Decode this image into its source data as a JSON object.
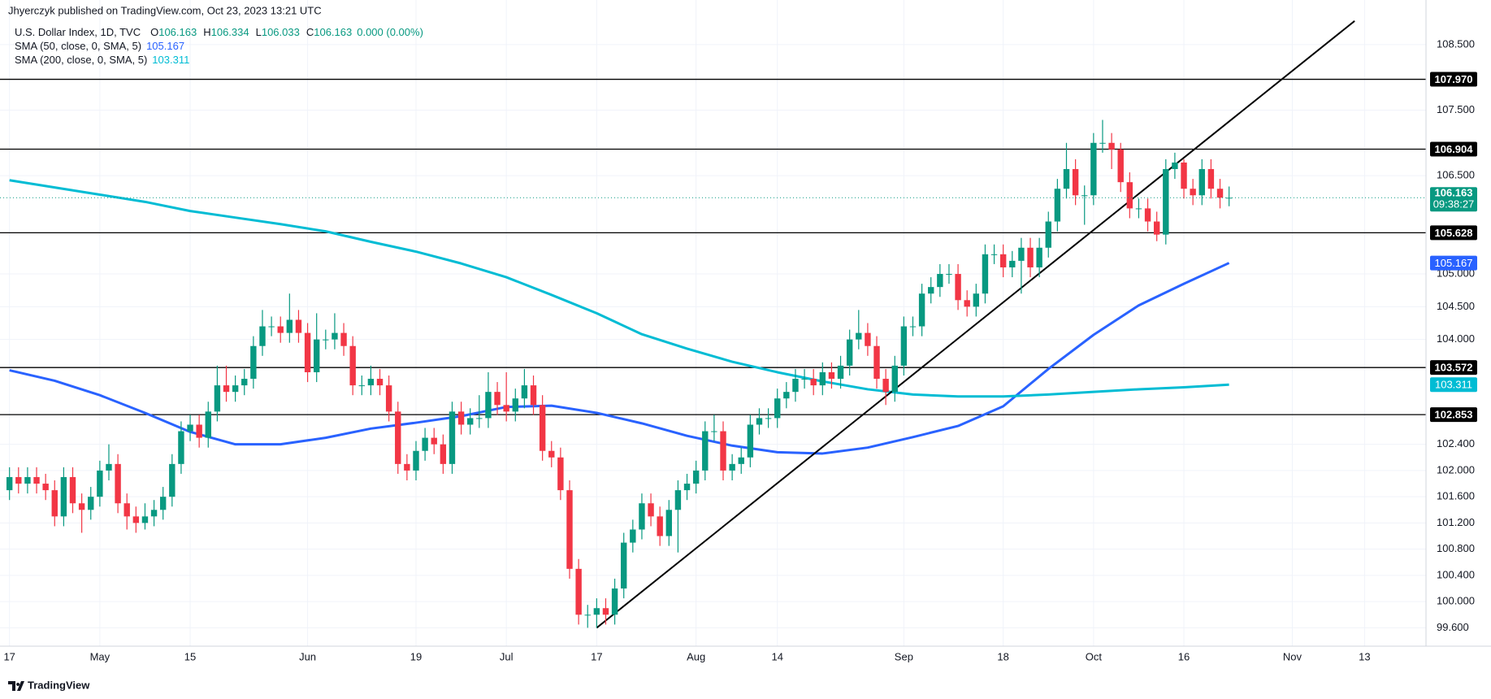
{
  "chart_data": {
    "type": "candlestick",
    "publisher": "Jhyerczyk published on TradingView.com, Oct 23, 2023 13:21 UTC",
    "title": "U.S. Dollar Index, 1D, TVC",
    "ohlc_prefix": [
      "O",
      "H",
      "L",
      "C"
    ],
    "change_label": "0.000 (0.00%)",
    "countdown": "09:38:27",
    "footer": "TradingView",
    "up_color": "#089981",
    "down_color": "#f23645",
    "open": [
      101.7,
      101.9,
      101.8,
      101.9,
      101.8,
      101.7,
      101.3,
      101.9,
      101.5,
      101.4,
      101.6,
      102.0,
      102.1,
      101.5,
      101.3,
      101.2,
      101.3,
      101.4,
      101.6,
      102.1,
      102.6,
      102.7,
      102.5,
      102.9,
      103.3,
      103.2,
      103.3,
      103.4,
      103.9,
      104.2,
      104.2,
      104.1,
      104.3,
      104.1,
      103.5,
      104.0,
      104.0,
      104.1,
      103.9,
      103.3,
      103.3,
      103.4,
      103.3,
      102.9,
      102.1,
      102.0,
      102.3,
      102.5,
      102.4,
      102.1,
      102.9,
      102.7,
      102.8,
      102.8,
      103.2,
      103.0,
      102.9,
      103.1,
      103.3,
      103.0,
      102.3,
      102.2,
      101.7,
      100.5,
      99.8,
      99.8,
      99.9,
      99.8,
      100.2,
      100.9,
      101.1,
      101.5,
      101.3,
      101.0,
      101.4,
      101.7,
      101.8,
      102.0,
      102.6,
      102.6,
      102.0,
      102.1,
      102.2,
      102.7,
      102.8,
      102.8,
      103.1,
      103.2,
      103.4,
      103.4,
      103.3,
      103.5,
      103.4,
      103.6,
      104.0,
      104.1,
      103.9,
      103.4,
      103.2,
      103.6,
      104.2,
      104.2,
      104.7,
      104.8,
      105.0,
      105.0,
      104.6,
      104.5,
      104.7,
      105.3,
      105.3,
      105.1,
      105.2,
      105.4,
      105.1,
      105.4,
      105.8,
      106.3,
      106.6,
      106.2,
      106.2,
      107.0,
      107.0,
      106.9,
      106.4,
      106.0,
      106.0,
      105.8,
      105.6,
      106.6,
      106.7,
      106.3,
      106.2,
      106.6,
      106.3,
      106.163
    ],
    "high": [
      102.05,
      102.05,
      102.05,
      102.05,
      101.95,
      101.85,
      102.05,
      102.05,
      101.65,
      101.75,
      102.15,
      102.4,
      102.25,
      101.65,
      101.45,
      101.5,
      101.55,
      101.75,
      102.25,
      102.75,
      102.85,
      102.85,
      103.05,
      103.6,
      103.6,
      103.45,
      103.55,
      104.05,
      104.45,
      104.35,
      104.35,
      104.7,
      104.45,
      104.25,
      104.4,
      104.15,
      104.4,
      104.25,
      104.05,
      103.45,
      103.6,
      103.55,
      103.45,
      103.05,
      102.25,
      102.45,
      102.65,
      102.65,
      102.55,
      103.05,
      103.05,
      102.95,
      103.15,
      103.5,
      103.35,
      103.5,
      103.25,
      103.55,
      103.45,
      103.15,
      102.45,
      102.35,
      101.85,
      100.65,
      99.95,
      100.05,
      100.05,
      100.35,
      101.05,
      101.25,
      101.65,
      101.65,
      101.45,
      101.55,
      101.85,
      101.95,
      102.15,
      102.75,
      102.85,
      102.75,
      102.25,
      102.35,
      102.85,
      102.95,
      102.95,
      103.25,
      103.35,
      103.55,
      103.55,
      103.55,
      103.65,
      103.65,
      103.75,
      104.15,
      104.45,
      104.25,
      104.05,
      103.55,
      103.75,
      104.35,
      104.35,
      104.85,
      104.95,
      105.15,
      105.15,
      105.15,
      104.75,
      104.85,
      105.45,
      105.45,
      105.45,
      105.35,
      105.55,
      105.55,
      105.55,
      105.95,
      106.45,
      107.0,
      106.75,
      106.35,
      107.15,
      107.35,
      107.15,
      107.0,
      106.55,
      106.15,
      106.15,
      105.95,
      106.75,
      106.85,
      106.75,
      106.45,
      106.75,
      106.75,
      106.45,
      106.334
    ],
    "low": [
      101.55,
      101.65,
      101.65,
      101.65,
      101.55,
      101.15,
      101.15,
      101.35,
      101.05,
      101.25,
      101.45,
      101.85,
      101.35,
      101.1,
      101.05,
      101.1,
      101.15,
      101.25,
      101.45,
      101.95,
      102.45,
      102.35,
      102.35,
      102.75,
      103.05,
      103.05,
      103.15,
      103.25,
      103.75,
      104.05,
      103.95,
      103.95,
      103.95,
      103.35,
      103.35,
      103.85,
      103.85,
      103.75,
      103.15,
      103.15,
      103.15,
      103.15,
      102.75,
      101.95,
      101.85,
      101.85,
      102.15,
      102.25,
      101.95,
      101.95,
      102.55,
      102.55,
      102.65,
      102.65,
      102.85,
      102.75,
      102.75,
      102.95,
      102.85,
      102.15,
      102.05,
      101.55,
      100.35,
      99.65,
      99.6,
      99.6,
      99.65,
      99.65,
      100.05,
      100.75,
      100.95,
      101.15,
      100.85,
      100.85,
      100.75,
      101.55,
      101.65,
      101.85,
      102.45,
      101.85,
      101.85,
      101.95,
      102.05,
      102.55,
      102.65,
      102.65,
      102.95,
      103.05,
      103.25,
      103.15,
      103.15,
      103.25,
      103.25,
      103.45,
      103.85,
      103.75,
      103.25,
      103.0,
      103.05,
      103.45,
      104.05,
      104.05,
      104.55,
      104.65,
      104.85,
      104.45,
      104.35,
      104.35,
      104.55,
      105.15,
      104.95,
      104.95,
      104.7,
      104.95,
      104.95,
      105.25,
      105.65,
      106.15,
      106.05,
      105.75,
      106.05,
      106.85,
      106.6,
      106.25,
      105.85,
      105.85,
      105.65,
      105.5,
      105.45,
      106.45,
      106.15,
      106.05,
      106.05,
      106.15,
      106.0,
      106.033
    ],
    "close": [
      101.9,
      101.8,
      101.9,
      101.8,
      101.7,
      101.3,
      101.9,
      101.5,
      101.4,
      101.6,
      102.0,
      102.1,
      101.5,
      101.3,
      101.2,
      101.3,
      101.4,
      101.6,
      102.1,
      102.6,
      102.7,
      102.5,
      102.9,
      103.3,
      103.2,
      103.3,
      103.4,
      103.9,
      104.2,
      104.2,
      104.1,
      104.3,
      104.1,
      103.5,
      104.0,
      104.0,
      104.1,
      103.9,
      103.3,
      103.3,
      103.4,
      103.3,
      102.9,
      102.1,
      102.0,
      102.3,
      102.5,
      102.4,
      102.1,
      102.9,
      102.7,
      102.8,
      102.8,
      103.2,
      103.0,
      102.9,
      103.1,
      103.3,
      103.0,
      102.3,
      102.2,
      101.7,
      100.5,
      99.8,
      99.8,
      99.9,
      99.8,
      100.2,
      100.9,
      101.1,
      101.5,
      101.3,
      101.0,
      101.4,
      101.7,
      101.8,
      102.0,
      102.6,
      102.6,
      102.0,
      102.1,
      102.2,
      102.7,
      102.8,
      102.8,
      103.1,
      103.2,
      103.4,
      103.4,
      103.3,
      103.5,
      103.4,
      103.6,
      104.0,
      104.1,
      103.9,
      103.4,
      103.2,
      103.6,
      104.2,
      104.2,
      104.7,
      104.8,
      105.0,
      105.0,
      104.6,
      104.5,
      104.7,
      105.3,
      105.3,
      105.1,
      105.2,
      105.4,
      105.1,
      105.4,
      105.8,
      106.3,
      106.6,
      106.2,
      106.2,
      107.0,
      107.0,
      106.9,
      106.4,
      106.0,
      106.0,
      105.8,
      105.6,
      106.6,
      106.7,
      106.3,
      106.2,
      106.6,
      106.3,
      106.163,
      106.163
    ],
    "series": [
      {
        "name": "SMA (50, close, 0, SMA, 5)",
        "color": "#2962ff",
        "x": [
          0,
          5,
          10,
          15,
          20,
          25,
          30,
          35,
          40,
          45,
          50,
          55,
          60,
          65,
          70,
          75,
          80,
          85,
          90,
          95,
          100,
          105,
          110,
          115,
          120,
          125,
          130,
          135
        ],
        "values": [
          103.53,
          103.37,
          103.15,
          102.88,
          102.59,
          102.4,
          102.4,
          102.5,
          102.64,
          102.73,
          102.83,
          102.97,
          102.99,
          102.88,
          102.72,
          102.53,
          102.38,
          102.28,
          102.26,
          102.35,
          102.51,
          102.68,
          102.98,
          103.55,
          104.07,
          104.52,
          104.85,
          105.167
        ]
      },
      {
        "name": "SMA (200, close, 0, SMA, 5)",
        "color": "#00bcd4",
        "x": [
          0,
          5,
          10,
          15,
          20,
          25,
          30,
          35,
          40,
          45,
          50,
          55,
          60,
          65,
          70,
          75,
          80,
          85,
          90,
          95,
          100,
          105,
          110,
          115,
          120,
          125,
          130,
          135
        ],
        "values": [
          106.43,
          106.32,
          106.21,
          106.1,
          105.96,
          105.86,
          105.76,
          105.65,
          105.49,
          105.34,
          105.16,
          104.95,
          104.68,
          104.4,
          104.08,
          103.86,
          103.66,
          103.5,
          103.36,
          103.24,
          103.16,
          103.13,
          103.13,
          103.16,
          103.2,
          103.24,
          103.27,
          103.311
        ]
      }
    ],
    "levels": [
      {
        "value": 107.97,
        "label": "107.970"
      },
      106.904,
      105.628,
      103.572,
      102.853
    ],
    "level_color": "#000000",
    "trendline": {
      "x": [
        65,
        148.9
      ],
      "y": [
        99.6,
        108.86
      ],
      "color": "#000000"
    },
    "xlim": [
      -1.05,
      156.8
    ],
    "ylim": [
      99.32,
      109.18
    ],
    "xticks": [
      {
        "value": 0,
        "label": "17"
      },
      {
        "value": 10,
        "label": "May"
      },
      {
        "value": 20,
        "label": "15"
      },
      {
        "value": 33,
        "label": "Jun"
      },
      {
        "value": 45,
        "label": "19"
      },
      {
        "value": 55,
        "label": "Jul"
      },
      {
        "value": 65,
        "label": "17"
      },
      {
        "value": 76,
        "label": "Aug"
      },
      {
        "value": 85,
        "label": "14"
      },
      {
        "value": 99,
        "label": "Sep"
      },
      {
        "value": 110,
        "label": "18"
      },
      {
        "value": 120,
        "label": "Oct"
      },
      {
        "value": 130,
        "label": "16"
      },
      {
        "value": 142,
        "label": "Nov"
      },
      {
        "value": 150,
        "label": "13"
      }
    ],
    "yticks": [
      {
        "value": 99.6,
        "label": "99.600"
      },
      {
        "value": 100,
        "label": "100.000"
      },
      {
        "value": 100.4,
        "label": "100.400"
      },
      {
        "value": 100.8,
        "label": "100.800"
      },
      {
        "value": 101.2,
        "label": "101.200"
      },
      {
        "value": 101.6,
        "label": "101.600"
      },
      {
        "value": 102,
        "label": "102.000"
      },
      {
        "value": 102.4,
        "label": "102.400"
      },
      {
        "value": 104,
        "label": "104.000"
      },
      {
        "value": 104.5,
        "label": "104.500"
      },
      {
        "value": 105,
        "label": "105.000"
      },
      {
        "value": 106.5,
        "label": "106.500"
      },
      {
        "value": 107.5,
        "label": "107.500"
      },
      {
        "value": 108.5,
        "label": "108.500"
      }
    ],
    "grid": true
  }
}
